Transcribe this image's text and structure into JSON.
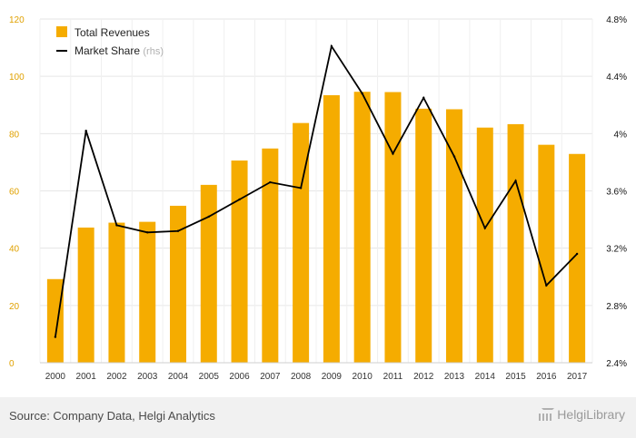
{
  "chart_data": {
    "type": "bar",
    "categories": [
      "2000",
      "2001",
      "2002",
      "2003",
      "2004",
      "2005",
      "2006",
      "2007",
      "2008",
      "2009",
      "2010",
      "2011",
      "2012",
      "2013",
      "2014",
      "2015",
      "2016",
      "2017"
    ],
    "series": [
      {
        "name": "Total Revenues",
        "type": "bar",
        "axis": "left",
        "color": "#f5ac00",
        "values": [
          29.2,
          47.2,
          48.9,
          49.2,
          54.8,
          62.1,
          70.6,
          74.8,
          83.7,
          93.4,
          94.6,
          94.5,
          88.7,
          88.5,
          82.1,
          83.3,
          76.1,
          72.9
        ]
      },
      {
        "name": "Market Share",
        "name_suffix": "(rhs)",
        "type": "line",
        "axis": "right",
        "color": "#000000",
        "values": [
          2.58,
          4.02,
          3.36,
          3.31,
          3.32,
          3.42,
          3.54,
          3.66,
          3.62,
          4.61,
          4.28,
          3.86,
          4.25,
          3.84,
          3.34,
          3.67,
          2.94,
          3.16
        ]
      }
    ],
    "ylim_left": [
      0,
      120
    ],
    "yticks_left": [
      "0",
      "20",
      "40",
      "60",
      "80",
      "100",
      "120"
    ],
    "ylim_right": [
      2.4,
      4.8
    ],
    "yticks_right": [
      "2.4%",
      "2.8%",
      "3.2%",
      "3.6%",
      "4%",
      "4.4%",
      "4.8%"
    ],
    "grid": true,
    "legend_position": "top-left"
  },
  "footer": {
    "source": "Source: Company Data, Helgi Analytics",
    "brand": "HelgiLibrary"
  }
}
